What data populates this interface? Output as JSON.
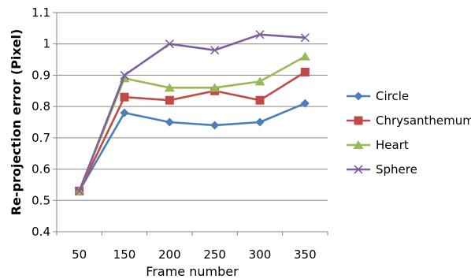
{
  "chart_data": {
    "type": "line",
    "title": "",
    "xlabel": "Frame number",
    "ylabel": "Re-projection error (Pixel)",
    "categories": [
      "50",
      "150",
      "200",
      "250",
      "300",
      "350"
    ],
    "ylim": [
      0.4,
      1.1
    ],
    "yticks": [
      "0.4",
      "0.5",
      "0.6",
      "0.7",
      "0.8",
      "0.9",
      "1",
      "1.1"
    ],
    "grid": "horizontal",
    "legend_position": "right",
    "series": [
      {
        "name": "Circle",
        "values": [
          0.53,
          0.78,
          0.75,
          0.74,
          0.75,
          0.81
        ],
        "color": "#4a7ebb",
        "marker": "diamond"
      },
      {
        "name": "Chrysanthemum",
        "values": [
          0.53,
          0.83,
          0.82,
          0.85,
          0.82,
          0.91
        ],
        "color": "#be4b48",
        "marker": "square"
      },
      {
        "name": "Heart",
        "values": [
          0.53,
          0.89,
          0.86,
          0.86,
          0.88,
          0.96
        ],
        "color": "#98b954",
        "marker": "triangle"
      },
      {
        "name": "Sphere",
        "values": [
          0.53,
          0.9,
          1.0,
          0.98,
          1.03,
          1.02
        ],
        "color": "#7d5fa0",
        "marker": "x"
      }
    ]
  }
}
